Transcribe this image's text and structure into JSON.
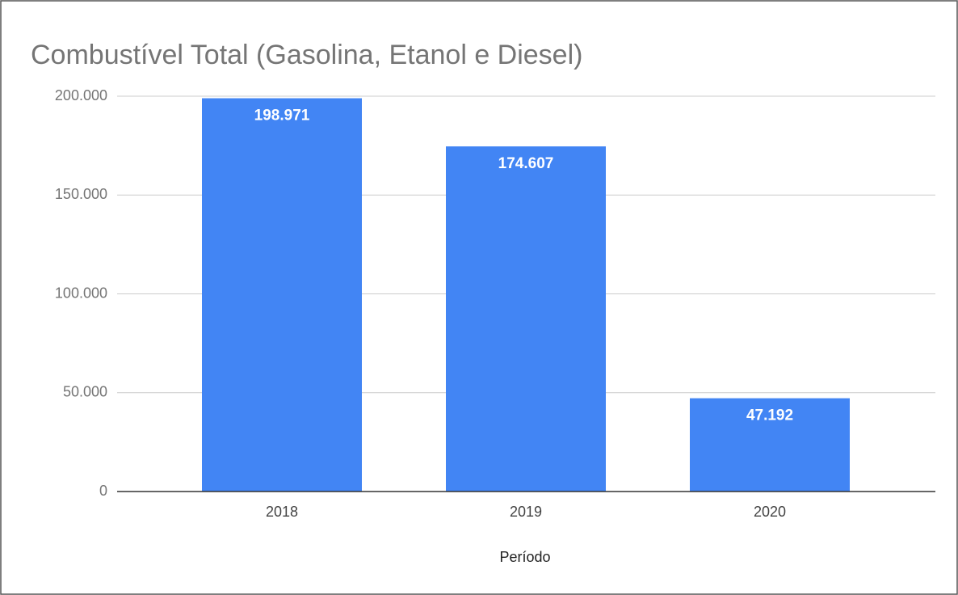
{
  "chart_data": {
    "type": "bar",
    "title": "Combustível Total (Gasolina, Etanol e Diesel)",
    "x_label": "Período",
    "categories": [
      "2018",
      "2019",
      "2020"
    ],
    "values": [
      198971,
      174607,
      47192
    ],
    "value_labels": [
      "198.971",
      "174.607",
      "47.192"
    ],
    "color": "#4285f4",
    "ylim": [
      0,
      200000
    ],
    "yticks": [
      0,
      {
        "value": 50000,
        "label": "50.000"
      },
      {
        "value": 100000,
        "label": "100.000"
      },
      {
        "value": 150000,
        "label": "150.000"
      },
      {
        "value": 200000,
        "label": "200.000"
      }
    ],
    "grid": true
  }
}
